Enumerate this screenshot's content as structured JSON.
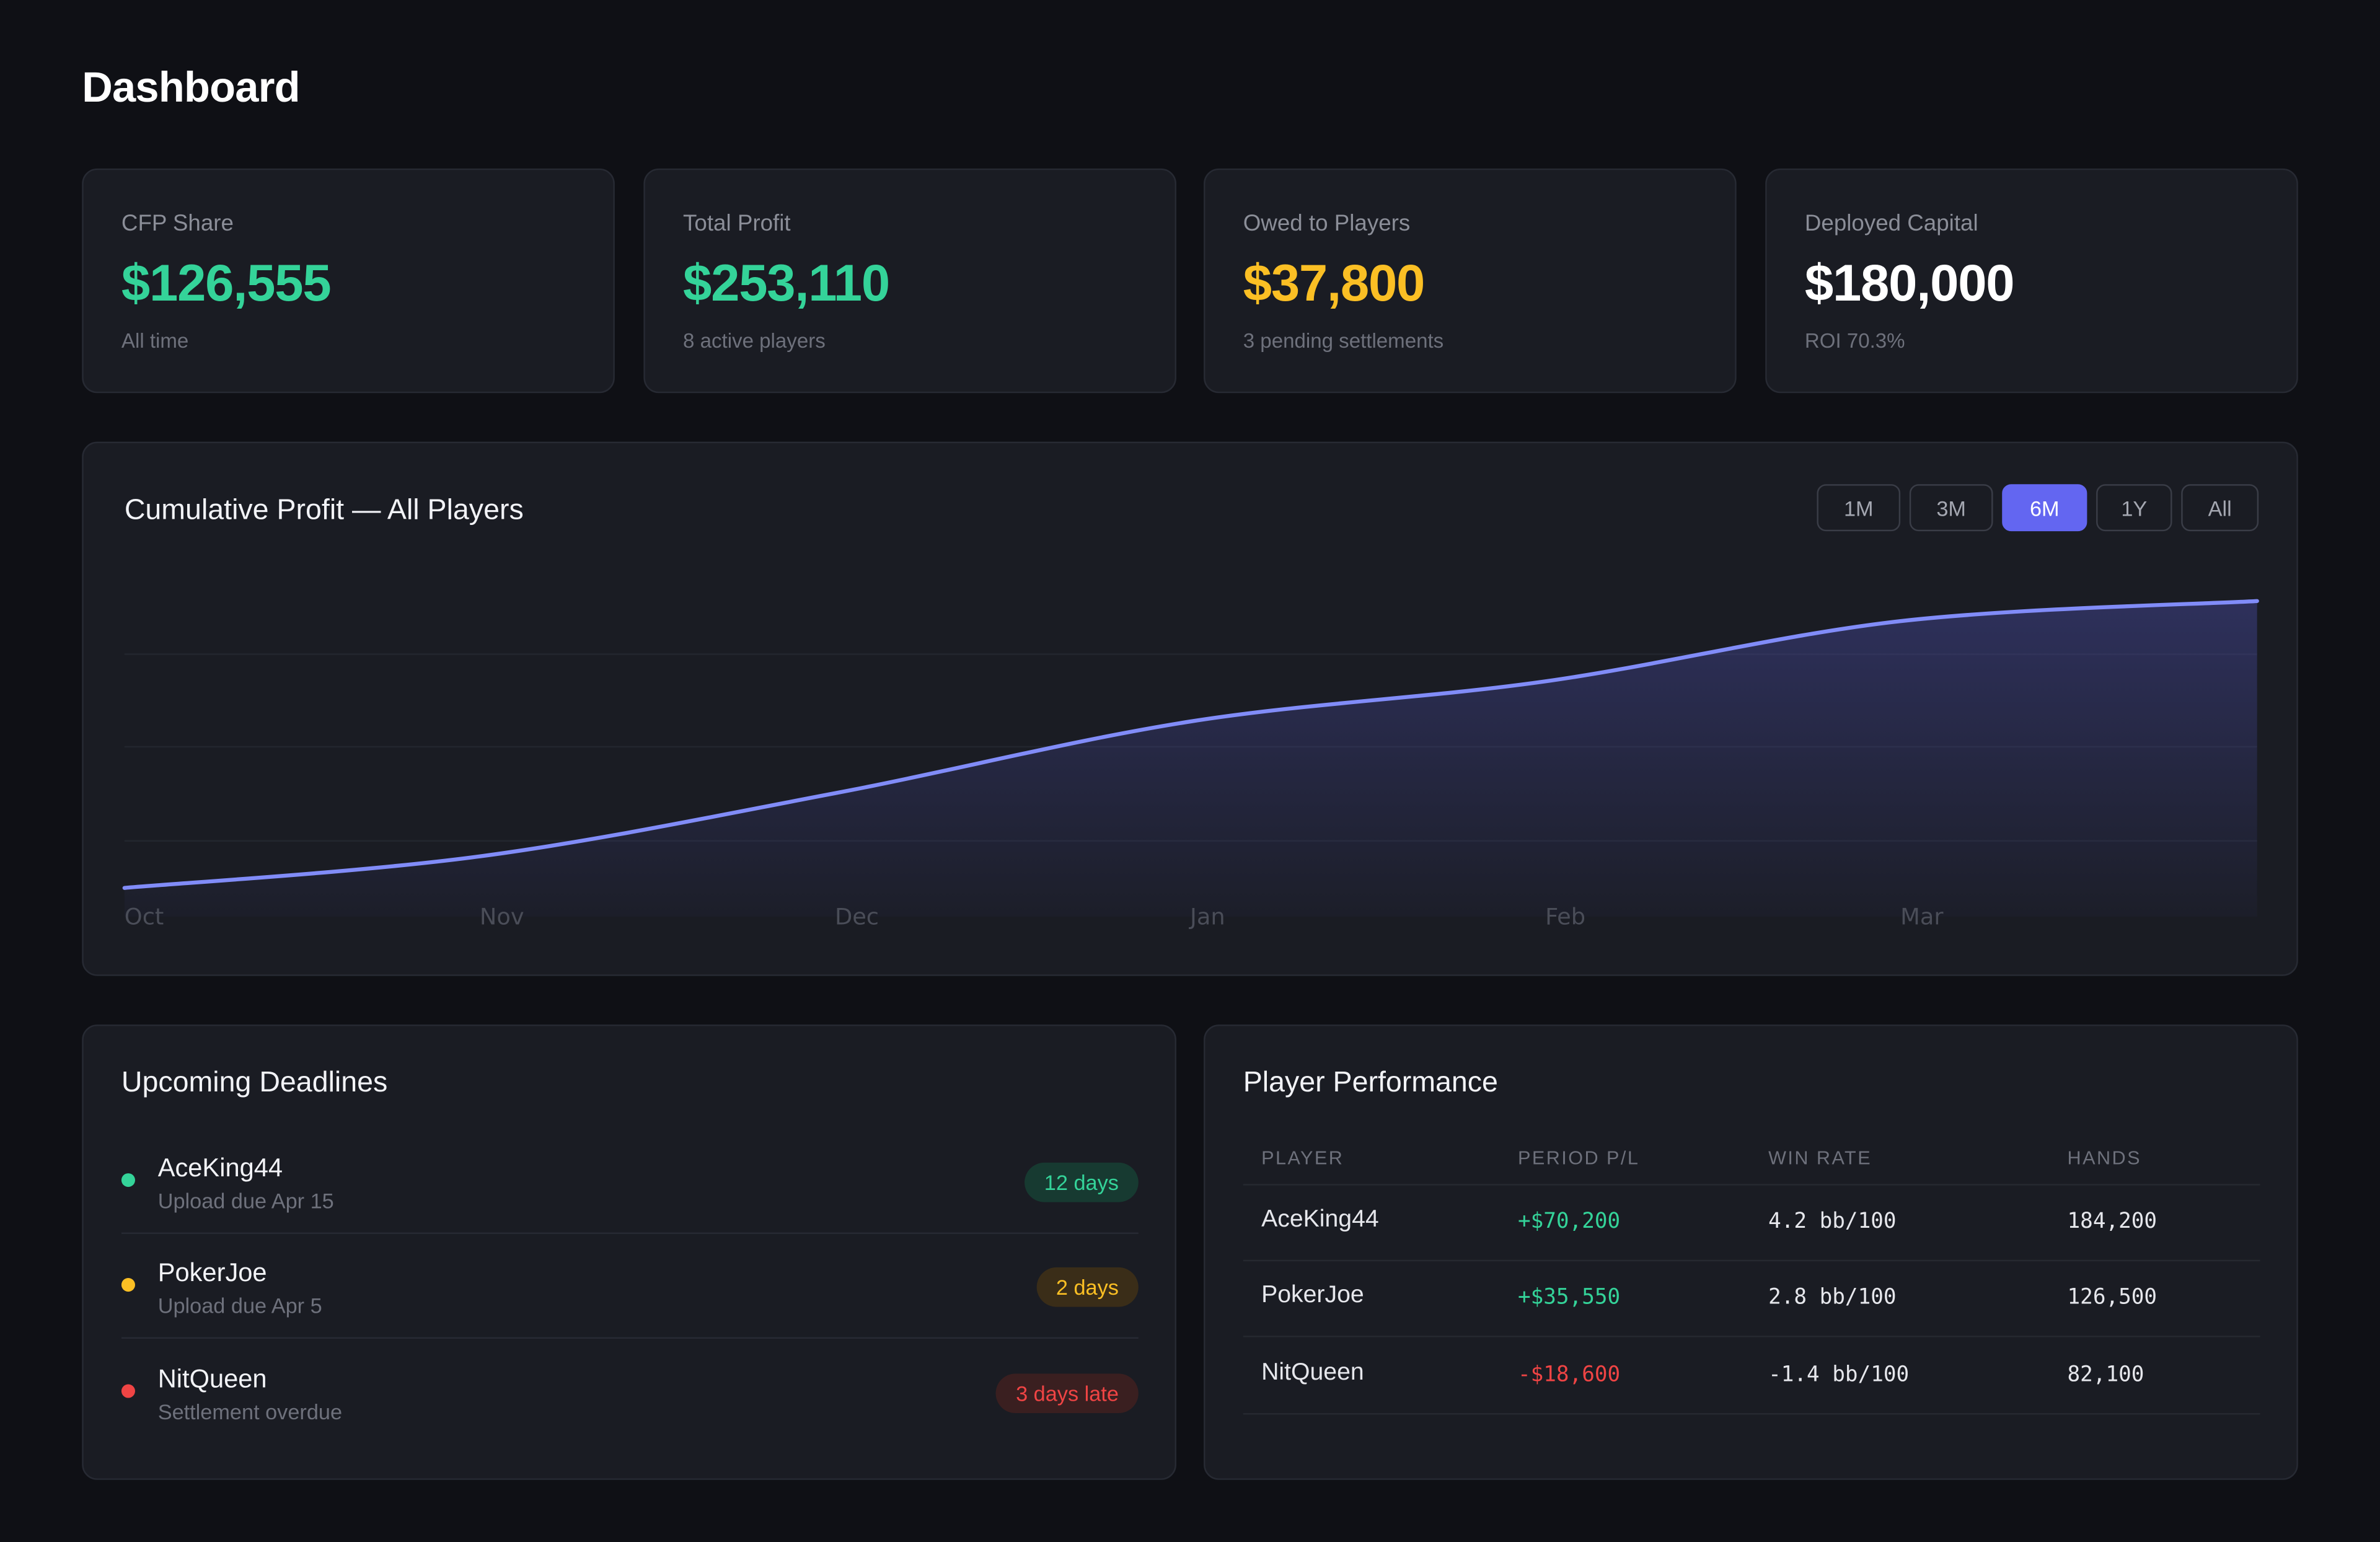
{
  "page": {
    "title": "Dashboard"
  },
  "stats": [
    {
      "label": "CFP Share",
      "value": "$126,555",
      "sub": "All time",
      "color": "#34d399"
    },
    {
      "label": "Total Profit",
      "value": "$253,110",
      "sub": "8 active players",
      "color": "#34d399"
    },
    {
      "label": "Owed to Players",
      "value": "$37,800",
      "sub": "3 pending settlements",
      "color": "#fbbf24"
    },
    {
      "label": "Deployed Capital",
      "value": "$180,000",
      "sub": "ROI 70.3%",
      "color": "#ffffff"
    }
  ],
  "chart": {
    "title": "Cumulative Profit — All Players",
    "ranges": [
      "1M",
      "3M",
      "6M",
      "1Y",
      "All"
    ],
    "active_range": "6M",
    "accent": "#6366f1"
  },
  "chart_data": {
    "type": "area",
    "title": "Cumulative Profit — All Players",
    "x": [
      "Oct",
      "Nov",
      "Dec",
      "Jan",
      "Feb",
      "Mar"
    ],
    "y_relative": [
      0.0,
      0.11,
      0.33,
      0.58,
      0.72,
      0.93
    ],
    "y_end": 1.0,
    "grid": true,
    "line_color": "#818cf8"
  },
  "deadlines": {
    "title": "Upcoming Deadlines",
    "items": [
      {
        "name": "AceKing44",
        "desc": "Upload due Apr 15",
        "badge": "12 days",
        "status": "ok"
      },
      {
        "name": "PokerJoe",
        "desc": "Upload due Apr 5",
        "badge": "2 days",
        "status": "warn"
      },
      {
        "name": "NitQueen",
        "desc": "Settlement overdue",
        "badge": "3 days late",
        "status": "late"
      }
    ],
    "colors": {
      "ok": "#34d399",
      "warn": "#fbbf24",
      "late": "#ef4444"
    }
  },
  "performance": {
    "title": "Player Performance",
    "columns": [
      "PLAYER",
      "PERIOD P/L",
      "WIN RATE",
      "HANDS"
    ],
    "rows": [
      {
        "player": "AceKing44",
        "pl": "+$70,200",
        "win_rate": "4.2 bb/100",
        "hands": "184,200",
        "positive": true
      },
      {
        "player": "PokerJoe",
        "pl": "+$35,550",
        "win_rate": "2.8 bb/100",
        "hands": "126,500",
        "positive": true
      },
      {
        "player": "NitQueen",
        "pl": "-$18,600",
        "win_rate": "-1.4 bb/100",
        "hands": "82,100",
        "positive": false
      }
    ]
  }
}
